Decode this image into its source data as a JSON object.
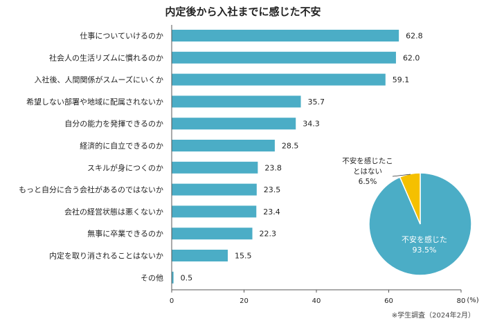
{
  "chart_data": [
    {
      "type": "bar",
      "orientation": "horizontal",
      "title": "内定後から入社までに感じた不安",
      "unit": "(%)",
      "categories": [
        "仕事についていけるのか",
        "社会人の生活リズムに慣れるのか",
        "入社後、人間関係がスムーズにいくか",
        "希望しない部署や地域に配属されないか",
        "自分の能力を発揮できるのか",
        "経済的に自立できるのか",
        "スキルが身につくのか",
        "もっと自分に合う会社があるのではないか",
        "会社の経営状態は悪くないか",
        "無事に卒業できるのか",
        "内定を取り消されることはないか",
        "その他"
      ],
      "values": [
        62.8,
        62.0,
        59.1,
        35.7,
        34.3,
        28.5,
        23.8,
        23.5,
        23.4,
        22.3,
        15.5,
        0.5
      ],
      "value_labels": [
        "62.8",
        "62.0",
        "59.1",
        "35.7",
        "34.3",
        "28.5",
        "23.8",
        "23.5",
        "23.4",
        "22.3",
        "15.5",
        "0.5"
      ],
      "xlim": [
        0,
        80
      ],
      "xticks": [
        "0",
        "20",
        "40",
        "60",
        "80"
      ],
      "color": "#4badc6",
      "grid": false
    },
    {
      "type": "pie",
      "slices": [
        {
          "label": "不安を感じた",
          "value": 93.5,
          "value_label": "93.5%",
          "color": "#4badc6"
        },
        {
          "label_lines": [
            "不安を感じたこ",
            "とはない"
          ],
          "value": 6.5,
          "value_label": "6.5%",
          "color": "#f5c000"
        }
      ]
    }
  ],
  "source": "※学生調査（2024年2月）"
}
